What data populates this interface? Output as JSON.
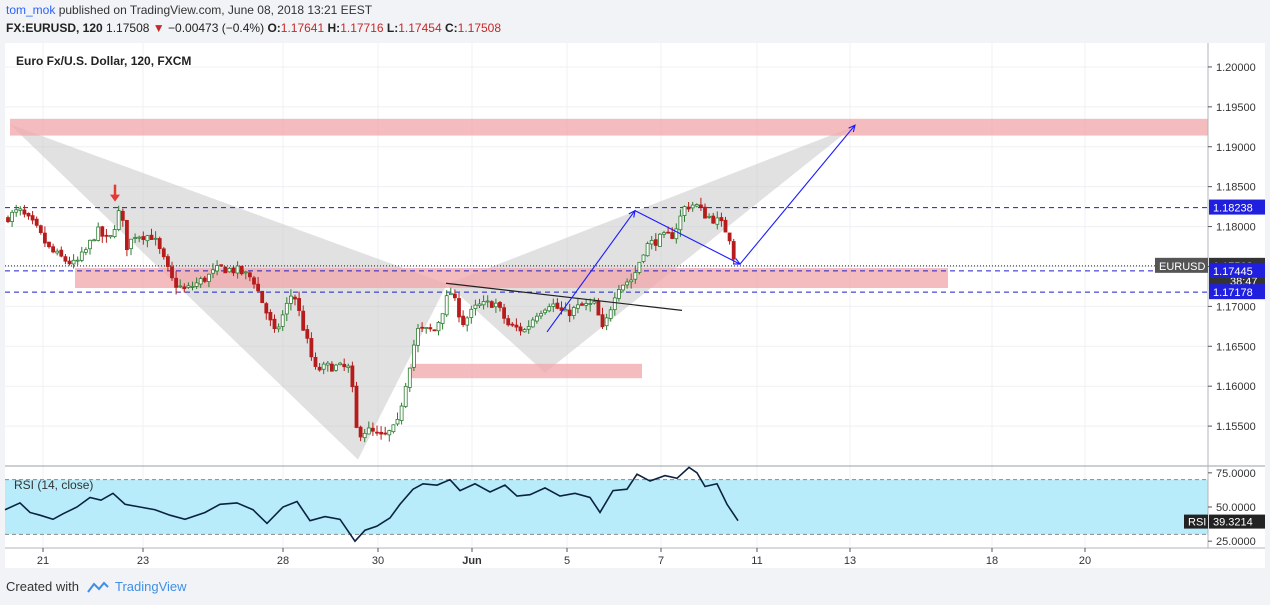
{
  "header": {
    "username": "tom_mok",
    "publish_text": "published on TradingView.com, June 08, 2018 13:21 EEST",
    "symbol": "FX:EURUSD, 120",
    "last": "1.17508",
    "change_arrow": "▼",
    "change": "−0.00473 (−0.4%)",
    "o_label": "O:",
    "o_value": "1.17641",
    "h_label": "H:",
    "h_value": "1.17716",
    "l_label": "L:",
    "l_value": "1.17454",
    "c_label": "C:",
    "c_value": "1.17508"
  },
  "chart_title": "Euro Fx/U.S. Dollar, 120, FXCM",
  "footer": {
    "created_with": "Created with",
    "brand": "TradingView"
  },
  "colors": {
    "bull": "#2e7d32",
    "bear": "#b71c1c",
    "zone": "#f0a6aa",
    "pattern": "#c9c9c9",
    "drawing": "#1a1aff",
    "rsi_bg": "#b8ecfa",
    "hline": "#1f1fcc"
  },
  "chart_data": [
    {
      "type": "candlestick",
      "title": "Euro Fx/U.S. Dollar, 120, FXCM",
      "x_ticks": [
        "21",
        "23",
        "28",
        "30",
        "Jun",
        "5",
        "7",
        "11",
        "13",
        "18",
        "20"
      ],
      "y_ticks": [
        "1.20000",
        "1.19500",
        "1.19000",
        "1.18500",
        "1.18000",
        "1.17500",
        "1.17000",
        "1.16500",
        "1.16000",
        "1.15500"
      ],
      "ylim": [
        1.15,
        1.203
      ],
      "close_path": [
        [
          0,
          1.181
        ],
        [
          14,
          1.182
        ],
        [
          30,
          1.18
        ],
        [
          45,
          1.177
        ],
        [
          60,
          1.1758
        ],
        [
          70,
          1.1752
        ],
        [
          80,
          1.1768
        ],
        [
          92,
          1.1795
        ],
        [
          104,
          1.178
        ],
        [
          115,
          1.1822
        ],
        [
          122,
          1.1775
        ],
        [
          130,
          1.179
        ],
        [
          148,
          1.1788
        ],
        [
          158,
          1.176
        ],
        [
          168,
          1.173
        ],
        [
          180,
          1.172
        ],
        [
          200,
          1.1735
        ],
        [
          215,
          1.1748
        ],
        [
          232,
          1.1745
        ],
        [
          248,
          1.1735
        ],
        [
          270,
          1.1665
        ],
        [
          288,
          1.172
        ],
        [
          310,
          1.162
        ],
        [
          325,
          1.1625
        ],
        [
          345,
          1.1622
        ],
        [
          352,
          1.154
        ],
        [
          362,
          1.1545
        ],
        [
          378,
          1.1535
        ],
        [
          392,
          1.155
        ],
        [
          400,
          1.16
        ],
        [
          412,
          1.167
        ],
        [
          430,
          1.167
        ],
        [
          445,
          1.172
        ],
        [
          458,
          1.168
        ],
        [
          472,
          1.17
        ],
        [
          490,
          1.1705
        ],
        [
          504,
          1.1675
        ],
        [
          520,
          1.167
        ],
        [
          532,
          1.1692
        ],
        [
          545,
          1.1705
        ],
        [
          560,
          1.169
        ],
        [
          575,
          1.17
        ],
        [
          590,
          1.1702
        ],
        [
          598,
          1.1668
        ],
        [
          612,
          1.1725
        ],
        [
          628,
          1.1735
        ],
        [
          640,
          1.1775
        ],
        [
          655,
          1.1785
        ],
        [
          668,
          1.179
        ],
        [
          680,
          1.1825
        ],
        [
          690,
          1.1828
        ],
        [
          700,
          1.1815
        ],
        [
          715,
          1.1805
        ],
        [
          724,
          1.179
        ],
        [
          731,
          1.1751
        ]
      ],
      "horizontal_levels": [
        {
          "value": 1.18238,
          "label": "1.18238",
          "style": "dashed"
        },
        {
          "value": 1.17508,
          "label": "1.17508",
          "symbol": "EURUSD",
          "timer": "38:47",
          "style": "dotted"
        },
        {
          "value": 1.17445,
          "label": "1.17445",
          "style": "dashed"
        },
        {
          "value": 1.17178,
          "label": "1.17178",
          "style": "dashed"
        }
      ],
      "zones": [
        {
          "y_top": 1.1935,
          "y_bottom": 1.1914,
          "x_start": 5,
          "x_end": 1203
        },
        {
          "y_top": 1.1748,
          "y_bottom": 1.1723,
          "x_start": 70,
          "x_end": 943
        },
        {
          "y_top": 1.1628,
          "y_bottom": 1.161,
          "x_start": 405,
          "x_end": 637
        }
      ],
      "pattern_points": [
        [
          5,
          1.1928
        ],
        [
          353,
          1.1508
        ],
        [
          442,
          1.1728
        ],
        [
          540,
          1.1617
        ],
        [
          848,
          1.1925
        ]
      ],
      "annotations": [
        {
          "type": "down_arrow",
          "x": 110,
          "y": 1.184
        },
        {
          "type": "trendline",
          "from": [
            441,
            1.1729
          ],
          "to": [
            677,
            1.1695
          ]
        },
        {
          "type": "arrow_path",
          "points": [
            [
              542,
              1.1668
            ],
            [
              630,
              1.182
            ],
            [
              735,
              1.1753
            ],
            [
              850,
              1.1927
            ]
          ]
        }
      ]
    },
    {
      "type": "line",
      "title": "RSI (14, close)",
      "indicator": "RSI",
      "y_ticks": [
        "75.0000",
        "50.0000",
        "25.0000"
      ],
      "ylim": [
        20,
        80
      ],
      "levels": [
        70,
        30
      ],
      "last_value": "39.3214",
      "last_label": "RSI",
      "values": [
        [
          0,
          48
        ],
        [
          15,
          53
        ],
        [
          25,
          46
        ],
        [
          35,
          44
        ],
        [
          48,
          41
        ],
        [
          58,
          45
        ],
        [
          72,
          50
        ],
        [
          85,
          57
        ],
        [
          96,
          55
        ],
        [
          108,
          60
        ],
        [
          120,
          52
        ],
        [
          135,
          50
        ],
        [
          150,
          48
        ],
        [
          165,
          44
        ],
        [
          180,
          41
        ],
        [
          200,
          46
        ],
        [
          215,
          52
        ],
        [
          232,
          53
        ],
        [
          248,
          48
        ],
        [
          262,
          38
        ],
        [
          278,
          50
        ],
        [
          292,
          54
        ],
        [
          305,
          40
        ],
        [
          320,
          43
        ],
        [
          335,
          41
        ],
        [
          350,
          25
        ],
        [
          360,
          33
        ],
        [
          372,
          36
        ],
        [
          385,
          42
        ],
        [
          395,
          52
        ],
        [
          408,
          63
        ],
        [
          418,
          67
        ],
        [
          432,
          66
        ],
        [
          445,
          70
        ],
        [
          455,
          62
        ],
        [
          470,
          67
        ],
        [
          485,
          61
        ],
        [
          500,
          66
        ],
        [
          512,
          58
        ],
        [
          525,
          59
        ],
        [
          540,
          64
        ],
        [
          555,
          58
        ],
        [
          570,
          60
        ],
        [
          585,
          57
        ],
        [
          595,
          46
        ],
        [
          608,
          62
        ],
        [
          622,
          63
        ],
        [
          632,
          74
        ],
        [
          645,
          69
        ],
        [
          660,
          73
        ],
        [
          672,
          71
        ],
        [
          684,
          79
        ],
        [
          692,
          75
        ],
        [
          700,
          65
        ],
        [
          712,
          67
        ],
        [
          722,
          52
        ],
        [
          733,
          40
        ]
      ]
    }
  ]
}
